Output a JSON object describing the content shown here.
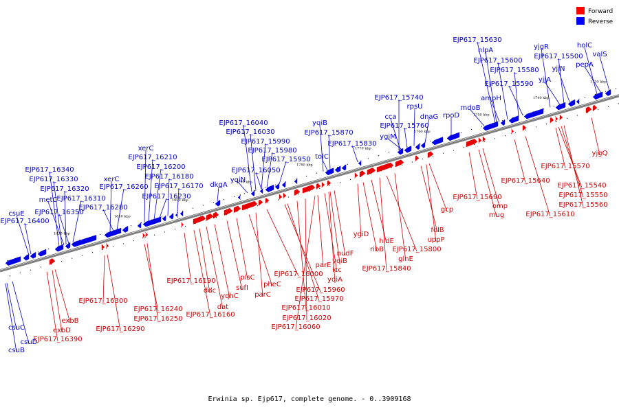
{
  "caption": "Erwinia sp. Ejp617, complete genome. - 0..3909168",
  "legend": [
    {
      "label": "Forward",
      "color": "#ff0000"
    },
    {
      "label": "Reverse",
      "color": "#0000ff"
    }
  ],
  "colors": {
    "forward": "#e60000",
    "reverse": "#0000e6",
    "forward_label": "#d00000",
    "reverse_label": "#0000c8",
    "backbone": "#808080"
  },
  "kbp_ticks": [
    "1820 kbp",
    "1810 kbp",
    "1800 kbp",
    "1790 kbp",
    "1780 kbp",
    "1770 kbp",
    "1760 kbp",
    "1750 kbp",
    "1740 kbp",
    "1730 kbp"
  ],
  "reverse_genes": [
    "csuE",
    "EJP617_16400",
    "EJP617_16340",
    "EJP617_16330",
    "metC",
    "EJP617_16320",
    "EJP617_16350",
    "EJP617_16310",
    "xerC",
    "EJP617_16260",
    "EJP617_16280",
    "xerC",
    "EJP617_16210",
    "EJP617_16200",
    "EJP617_16180",
    "EJP617_16230",
    "EJP617_16170",
    "dkgA",
    "EJP617_16040",
    "EJP617_16030",
    "EJP617_15990",
    "EJP617_15980",
    "EJP617_16050",
    "yqiN",
    "EJP617_15950",
    "yqiB",
    "EJP617_15870",
    "tolC",
    "EJP617_15830",
    "EJP617_15740",
    "cca",
    "rpsU",
    "EJP617_15760",
    "dnaG",
    "ygiM",
    "rpoD",
    "mdoB",
    "ampH",
    "EJP617_15630",
    "nlpA",
    "EJP617_15600",
    "EJP617_15580",
    "EJP617_15590",
    "yjgR",
    "EJP617_15500",
    "yjiN",
    "yjjA",
    "holC",
    "valS",
    "pepA"
  ],
  "reverse_lower_genes": [
    "csuC",
    "csuD",
    "csuB"
  ],
  "forward_genes": [
    "exbB",
    "exbD",
    "EJP617_16390",
    "EJP617_16300",
    "EJP617_16290",
    "EJP617_16240",
    "EJP617_16250",
    "EJP617_16190",
    "EJP617_16160",
    "ddc",
    "dat",
    "yqhC",
    "sufI",
    "plsC",
    "pheC",
    "parC",
    "EJP617_16000",
    "EJP617_15960",
    "EJP617_15970",
    "EJP617_16010",
    "EJP617_16020",
    "EJP617_16060",
    "parE",
    "icc",
    "yqiA",
    "yqiB",
    "nudF",
    "ygiD",
    "ribB",
    "hldE",
    "EJP617_15840",
    "EJP617_15800",
    "glnE",
    "folB",
    "uppP",
    "gcp",
    "EJP617_15690",
    "omp",
    "mug",
    "EJP617_15640",
    "EJP617_15610",
    "EJP617_15570",
    "EJP617_15540",
    "EJP617_15550",
    "EJP617_15560",
    "yjgQ"
  ]
}
